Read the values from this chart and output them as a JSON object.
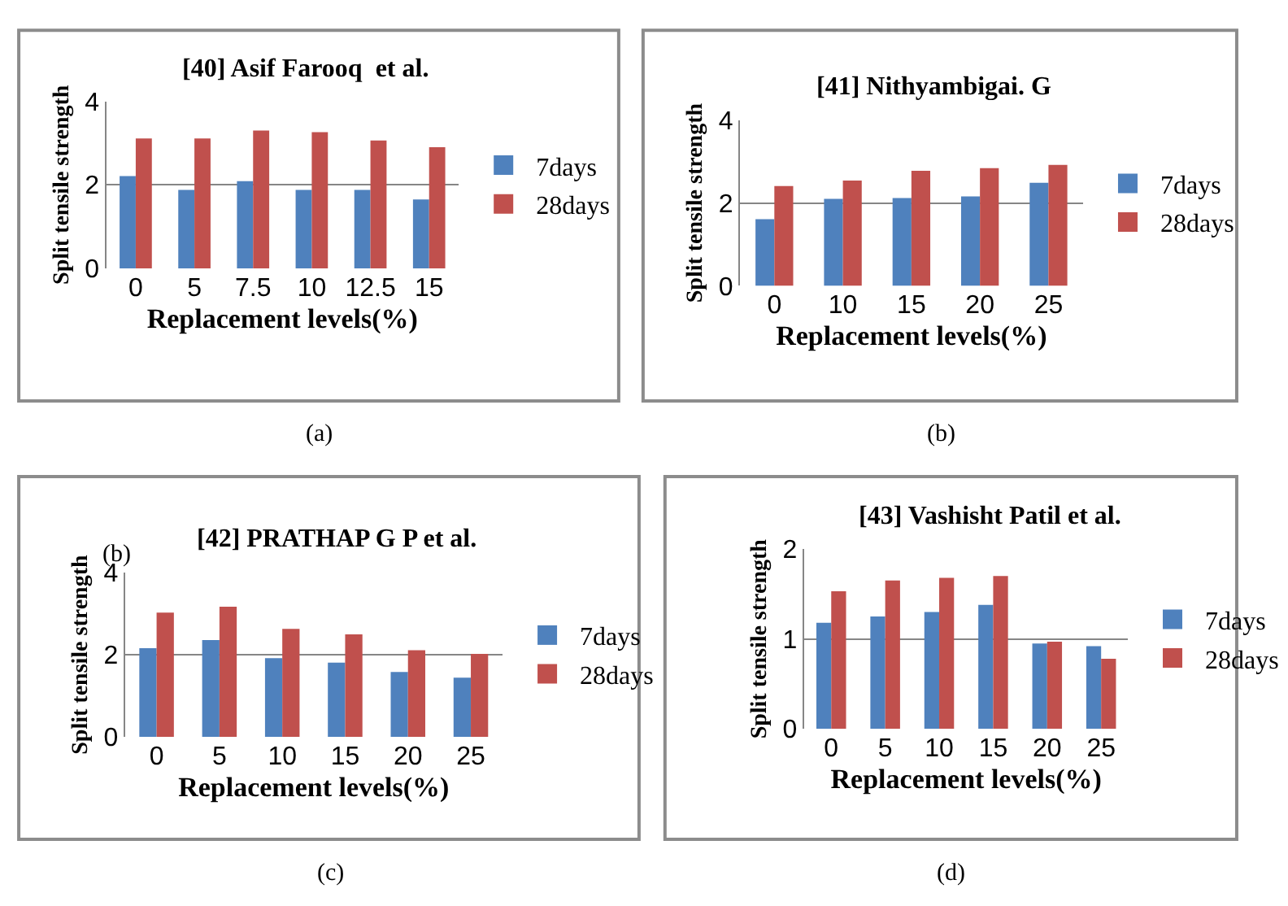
{
  "chart_data": [
    {
      "type": "bar",
      "title": "[40] Asif Farooq  et al.",
      "xlabel": "Replacement levels(%)",
      "ylabel": "Split tensile strength",
      "categories": [
        "0",
        "5",
        "7.5",
        "10",
        "12.5",
        "15"
      ],
      "ylim": [
        0,
        4
      ],
      "yticks": [
        0,
        2,
        4
      ],
      "grid": "y",
      "legend": "right",
      "annotations": [
        "(a)"
      ],
      "series": [
        {
          "name": "7days",
          "color": "#4f81bd",
          "values": [
            2.21,
            1.88,
            2.09,
            1.88,
            1.88,
            1.65
          ]
        },
        {
          "name": "28days",
          "color": "#c0504d",
          "values": [
            3.11,
            3.11,
            3.3,
            3.26,
            3.06,
            2.9
          ]
        }
      ]
    },
    {
      "type": "bar",
      "title": "[41] Nithyambigai. G",
      "xlabel": "Replacement levels(%)",
      "ylabel": "Split tensile strength",
      "categories": [
        "0",
        "10",
        "15",
        "20",
        "25"
      ],
      "ylim": [
        0,
        4
      ],
      "yticks": [
        0,
        2,
        4
      ],
      "grid": "y",
      "legend": "right",
      "annotations": [
        "(b)"
      ],
      "series": [
        {
          "name": "7days",
          "color": "#4f81bd",
          "values": [
            1.61,
            2.1,
            2.12,
            2.16,
            2.49
          ]
        },
        {
          "name": "28days",
          "color": "#c0504d",
          "values": [
            2.41,
            2.54,
            2.78,
            2.84,
            2.92
          ]
        }
      ]
    },
    {
      "type": "bar",
      "title": "[42] PRATHAP G P et al.",
      "xlabel": "Replacement levels(%)",
      "ylabel": "Split tensile strength",
      "categories": [
        "0",
        "5",
        "10",
        "15",
        "20",
        "25"
      ],
      "ylim": [
        0,
        4
      ],
      "yticks": [
        0,
        2,
        4
      ],
      "grid": "y",
      "legend": "right",
      "annotations": [
        "(b)",
        "(c)"
      ],
      "series": [
        {
          "name": "7days",
          "color": "#4f81bd",
          "values": [
            2.16,
            2.36,
            1.92,
            1.81,
            1.58,
            1.44
          ]
        },
        {
          "name": "28days",
          "color": "#c0504d",
          "values": [
            3.03,
            3.17,
            2.63,
            2.5,
            2.11,
            2.02
          ]
        }
      ]
    },
    {
      "type": "bar",
      "title": "[43] Vashisht Patil et al.",
      "xlabel": "Replacement levels(%)",
      "ylabel": "Split tensile strength",
      "categories": [
        "0",
        "5",
        "10",
        "15",
        "20",
        "25"
      ],
      "ylim": [
        0,
        2
      ],
      "yticks": [
        0,
        1,
        2
      ],
      "grid": "y",
      "legend": "right",
      "annotations": [
        "(d)"
      ],
      "series": [
        {
          "name": "7days",
          "color": "#4f81bd",
          "values": [
            1.18,
            1.25,
            1.3,
            1.38,
            0.95,
            0.92
          ]
        },
        {
          "name": "28days",
          "color": "#c0504d",
          "values": [
            1.53,
            1.65,
            1.68,
            1.7,
            0.97,
            0.78
          ]
        }
      ]
    }
  ]
}
